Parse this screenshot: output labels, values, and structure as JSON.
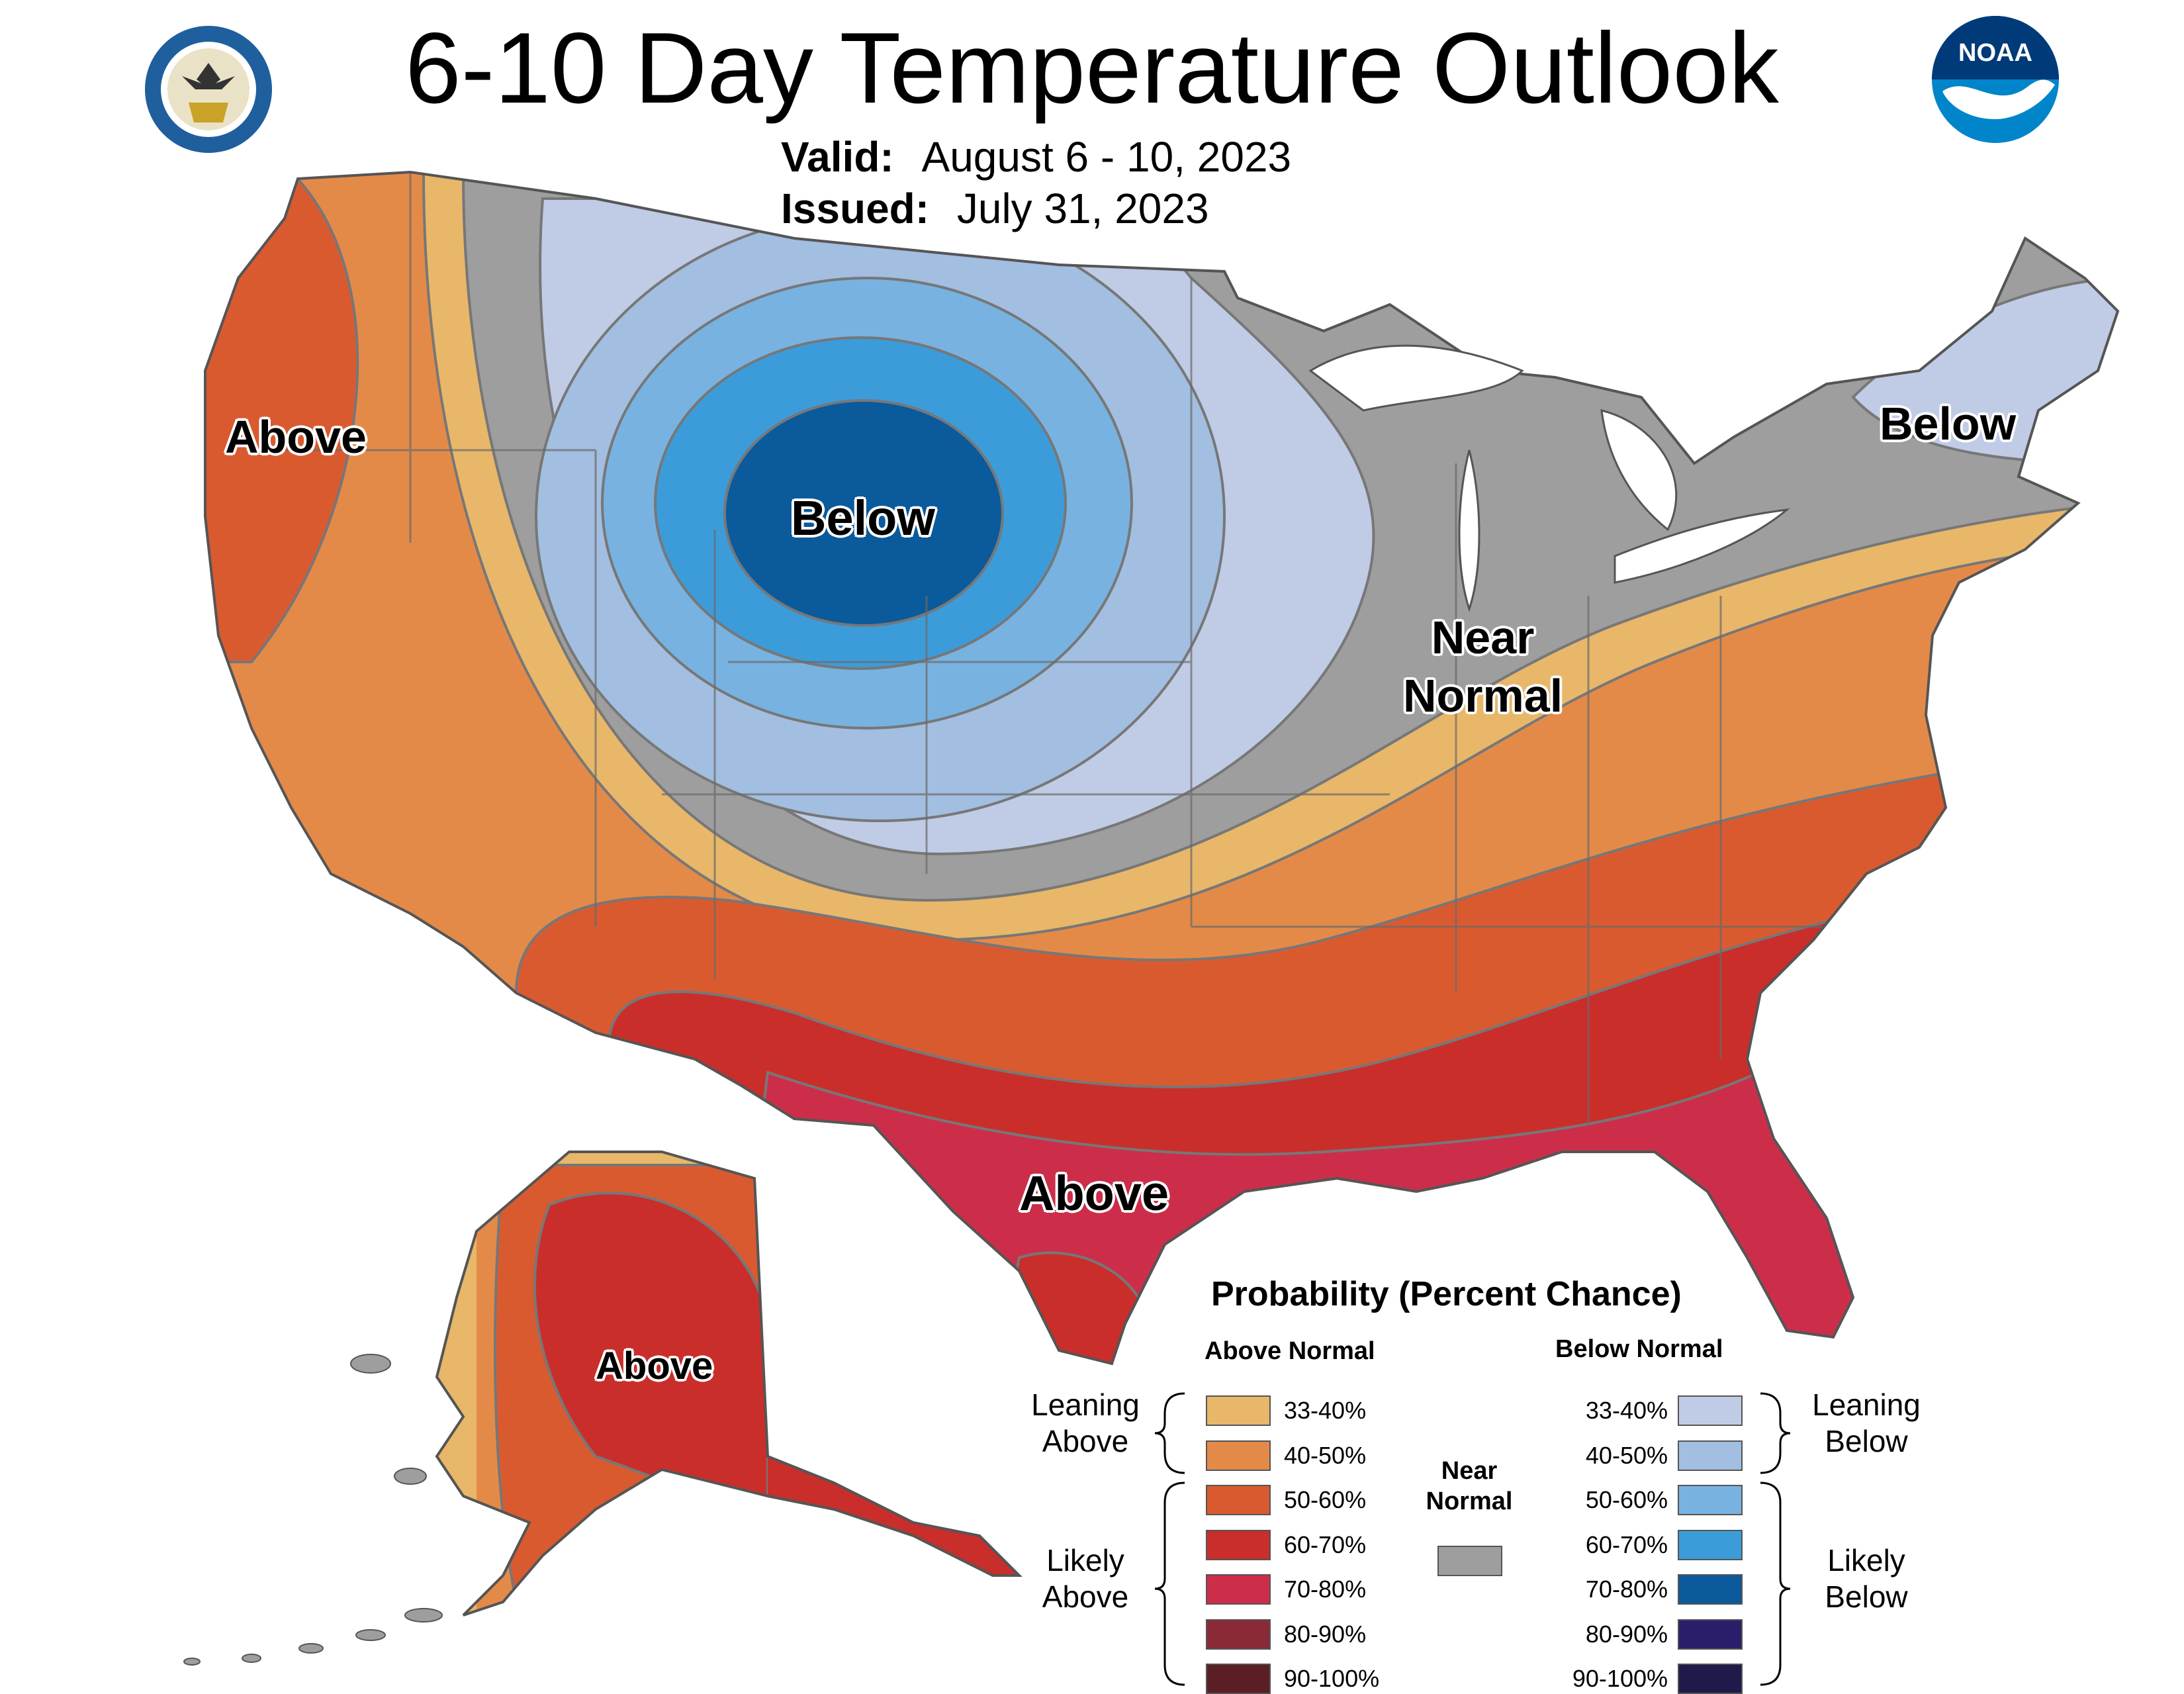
{
  "title": "6-10 Day Temperature Outlook",
  "valid": {
    "label": "Valid:",
    "value": "August 6 - 10, 2023"
  },
  "issued": {
    "label": "Issued:",
    "value": "July 31, 2023"
  },
  "logos": {
    "left": "department-of-commerce-seal",
    "right": "noaa-logo",
    "noaa_text": "NOAA"
  },
  "map_labels": {
    "above_west": "Above",
    "below_north": "Below",
    "below_northeast": "Below",
    "near_normal_1": "Near",
    "near_normal_2": "Normal",
    "above_south": "Above",
    "above_alaska": "Above"
  },
  "legend": {
    "title": "Probability (Percent Chance)",
    "above_header": "Above Normal",
    "below_header": "Below Normal",
    "near_header_1": "Near",
    "near_header_2": "Normal",
    "leaning_above_1": "Leaning",
    "leaning_above_2": "Above",
    "likely_above_1": "Likely",
    "likely_above_2": "Above",
    "leaning_below_1": "Leaning",
    "leaning_below_2": "Below",
    "likely_below_1": "Likely",
    "likely_below_2": "Below",
    "above": [
      {
        "label": "33-40%",
        "color": "#E8B76A"
      },
      {
        "label": "40-50%",
        "color": "#E48A48"
      },
      {
        "label": "50-60%",
        "color": "#DA5A30"
      },
      {
        "label": "60-70%",
        "color": "#C92E2B"
      },
      {
        "label": "70-80%",
        "color": "#CC2E4A"
      },
      {
        "label": "80-90%",
        "color": "#8A2A38"
      },
      {
        "label": "90-100%",
        "color": "#5A1E24"
      }
    ],
    "below": [
      {
        "label": "33-40%",
        "color": "#C0CCE6"
      },
      {
        "label": "40-50%",
        "color": "#A2BEE0"
      },
      {
        "label": "50-60%",
        "color": "#78B2E0"
      },
      {
        "label": "60-70%",
        "color": "#3C9CDA"
      },
      {
        "label": "70-80%",
        "color": "#0A5A9C"
      },
      {
        "label": "80-90%",
        "color": "#2A1E6A"
      },
      {
        "label": "90-100%",
        "color": "#1E1A4A"
      }
    ],
    "near_color": "#9E9E9E"
  }
}
